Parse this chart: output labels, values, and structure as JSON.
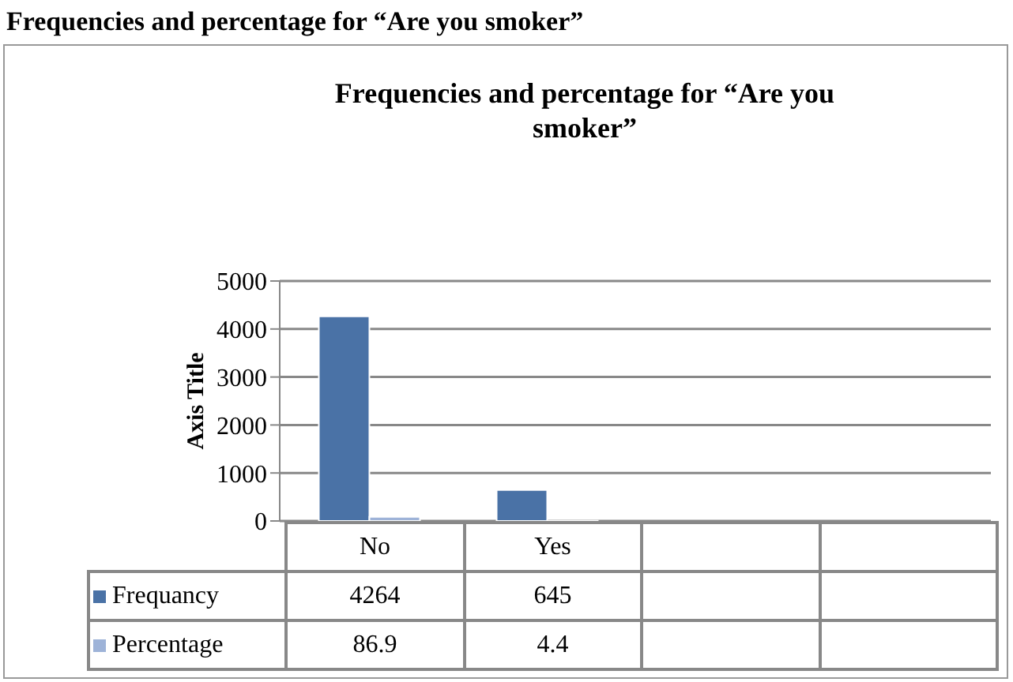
{
  "chart_data": {
    "type": "bar",
    "title": "Frequencies and percentage for “Are you smoker”",
    "ylabel": "Axis Title",
    "annotations": [
      "Frequencies and percentage for “Are you smoker”"
    ],
    "categories": [
      "No",
      "Yes",
      null,
      null
    ],
    "series": [
      {
        "name": "Frequancy",
        "color": "#4a72a6",
        "values": [
          4264,
          645,
          null,
          null
        ]
      },
      {
        "name": "Percentage",
        "color": "#9eb3d8",
        "values": [
          86.9,
          4.4,
          null,
          null
        ]
      }
    ],
    "ylim": [
      0,
      5000
    ],
    "yticks": [
      0,
      1000,
      2000,
      3000,
      4000,
      5000
    ],
    "grid": "y",
    "legend": "bottom",
    "data_labels": true
  }
}
